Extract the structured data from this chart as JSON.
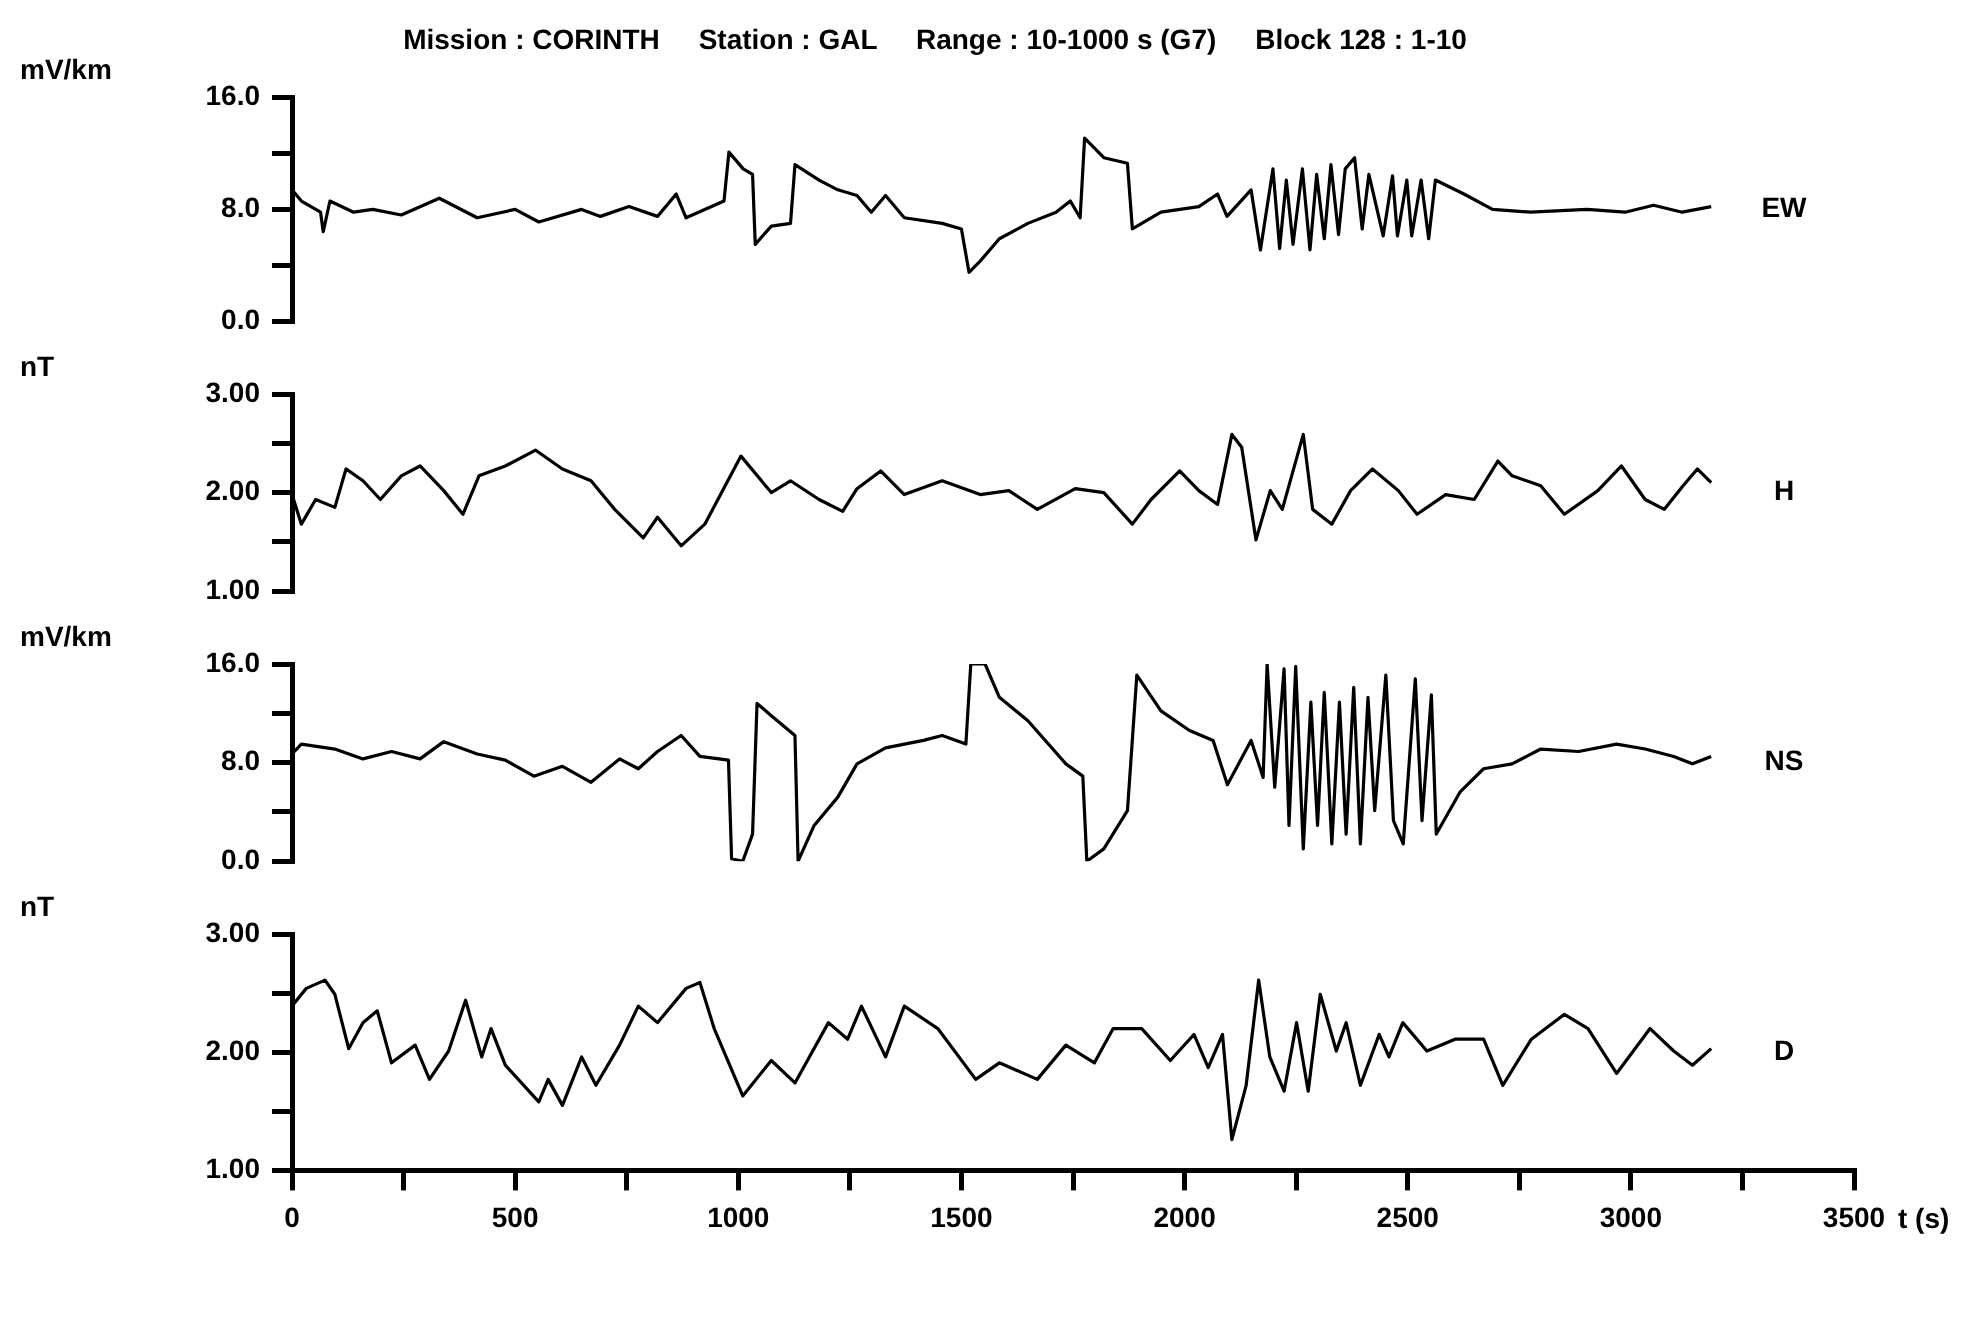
{
  "chart_data": [
    {
      "type": "line",
      "title": "Mission : CORINTH     Station : GAL     Range : 10-1000 s (G7)     Block 128 : 1-10",
      "ylabel": "mV/km",
      "xlim": [
        0,
        3500
      ],
      "ylim": [
        0,
        16
      ],
      "yticks": [
        {
          "value": 0,
          "label": "0.0"
        },
        {
          "value": 4,
          "label": null
        },
        {
          "value": 8,
          "label": "8.0"
        },
        {
          "value": 12,
          "label": null
        },
        {
          "value": 16,
          "label": "16.0"
        }
      ],
      "grid": false,
      "legend": false,
      "tick_labels": "y",
      "series": [
        {
          "name": "EW",
          "color": "#000000",
          "x": [
            0,
            21,
            64,
            70,
            85,
            138,
            181,
            245,
            330,
            415,
            500,
            553,
            649,
            691,
            755,
            819,
            861,
            883,
            968,
            979,
            1011,
            1032,
            1038,
            1074,
            1117,
            1127,
            1181,
            1223,
            1266,
            1298,
            1330,
            1372,
            1457,
            1500,
            1517,
            1542,
            1585,
            1649,
            1712,
            1744,
            1766,
            1776,
            1819,
            1872,
            1883,
            1947,
            2032,
            2074,
            2095,
            2149,
            2170,
            2198,
            2213,
            2228,
            2243,
            2264,
            2281,
            2296,
            2313,
            2328,
            2345,
            2360,
            2381,
            2398,
            2413,
            2445,
            2466,
            2477,
            2498,
            2509,
            2530,
            2547,
            2562,
            2626,
            2690,
            2775,
            2902,
            2987,
            3051,
            3115,
            3180
          ],
          "values": [
            9.4,
            8.6,
            7.8,
            6.4,
            8.6,
            7.8,
            8.0,
            7.6,
            8.8,
            7.4,
            8.0,
            7.1,
            8.0,
            7.5,
            8.2,
            7.5,
            9.1,
            7.4,
            8.6,
            12.1,
            10.9,
            10.5,
            5.5,
            6.8,
            7.0,
            11.2,
            10.1,
            9.4,
            9.0,
            7.8,
            9.0,
            7.4,
            7.0,
            6.6,
            3.5,
            4.3,
            5.9,
            7.0,
            7.8,
            8.6,
            7.4,
            13.1,
            11.7,
            11.3,
            6.6,
            7.8,
            8.2,
            9.1,
            7.5,
            9.4,
            5.1,
            10.9,
            5.2,
            10.1,
            5.5,
            10.9,
            5.1,
            10.5,
            5.9,
            11.2,
            6.2,
            10.9,
            11.7,
            6.6,
            10.5,
            6.1,
            10.4,
            6.1,
            10.1,
            6.1,
            10.1,
            5.9,
            10.1,
            9.1,
            8.0,
            7.8,
            8.0,
            7.8,
            8.3,
            7.8,
            8.2
          ]
        }
      ]
    },
    {
      "type": "line",
      "ylabel": "nT",
      "xlim": [
        0,
        3500
      ],
      "ylim": [
        1,
        3
      ],
      "yticks": [
        {
          "value": 1,
          "label": "1.00"
        },
        {
          "value": 1.5,
          "label": null
        },
        {
          "value": 2,
          "label": "2.00"
        },
        {
          "value": 2.5,
          "label": null
        },
        {
          "value": 3,
          "label": "3.00"
        }
      ],
      "grid": false,
      "legend": false,
      "tick_labels": "y",
      "series": [
        {
          "name": "H",
          "color": "#000000",
          "x": [
            0,
            21,
            53,
            96,
            121,
            159,
            198,
            245,
            287,
            340,
            383,
            419,
            478,
            546,
            606,
            670,
            723,
            787,
            819,
            872,
            925,
            1006,
            1074,
            1117,
            1181,
            1234,
            1266,
            1319,
            1372,
            1457,
            1542,
            1606,
            1670,
            1755,
            1819,
            1883,
            1925,
            1989,
            2032,
            2074,
            2106,
            2128,
            2160,
            2192,
            2219,
            2266,
            2287,
            2330,
            2372,
            2421,
            2479,
            2521,
            2585,
            2649,
            2702,
            2734,
            2798,
            2851,
            2926,
            2979,
            3032,
            3075,
            3117,
            3149,
            3180
          ],
          "values": [
            1.98,
            1.68,
            1.93,
            1.85,
            2.24,
            2.12,
            1.93,
            2.17,
            2.27,
            2.02,
            1.78,
            2.17,
            2.27,
            2.43,
            2.24,
            2.12,
            1.83,
            1.54,
            1.75,
            1.46,
            1.68,
            2.37,
            2.0,
            2.12,
            1.93,
            1.81,
            2.04,
            2.22,
            1.98,
            2.12,
            1.98,
            2.02,
            1.83,
            2.04,
            2.0,
            1.68,
            1.93,
            2.22,
            2.02,
            1.88,
            2.59,
            2.46,
            1.52,
            2.02,
            1.83,
            2.59,
            1.83,
            1.68,
            2.02,
            2.24,
            2.02,
            1.78,
            1.98,
            1.93,
            2.32,
            2.17,
            2.07,
            1.78,
            2.02,
            2.27,
            1.93,
            1.83,
            2.07,
            2.24,
            2.1
          ]
        }
      ]
    },
    {
      "type": "line",
      "ylabel": "mV/km",
      "xlim": [
        0,
        3500
      ],
      "ylim": [
        0,
        16
      ],
      "yticks": [
        {
          "value": 0,
          "label": "0.0"
        },
        {
          "value": 4,
          "label": null
        },
        {
          "value": 8,
          "label": "8.0"
        },
        {
          "value": 12,
          "label": null
        },
        {
          "value": 16,
          "label": "16.0"
        }
      ],
      "grid": false,
      "legend": false,
      "tick_labels": "y",
      "series": [
        {
          "name": "NS",
          "color": "#000000",
          "x": [
            0,
            21,
            96,
            159,
            223,
            287,
            340,
            415,
            478,
            542,
            606,
            670,
            734,
            776,
            819,
            872,
            914,
            978,
            985,
            1010,
            1032,
            1042,
            1074,
            1127,
            1134,
            1170,
            1223,
            1266,
            1330,
            1415,
            1457,
            1510,
            1521,
            1553,
            1585,
            1649,
            1734,
            1772,
            1781,
            1819,
            1872,
            1893,
            1947,
            2011,
            2064,
            2096,
            2149,
            2176,
            2185,
            2202,
            2223,
            2234,
            2249,
            2266,
            2283,
            2298,
            2313,
            2330,
            2347,
            2362,
            2379,
            2394,
            2411,
            2426,
            2451,
            2468,
            2490,
            2517,
            2532,
            2553,
            2564,
            2617,
            2670,
            2734,
            2798,
            2883,
            2968,
            3032,
            3096,
            3138,
            3180
          ],
          "values": [
            8.7,
            9.5,
            9.1,
            8.3,
            8.9,
            8.3,
            9.7,
            8.7,
            8.2,
            6.9,
            7.7,
            6.4,
            8.3,
            7.5,
            8.9,
            10.2,
            8.5,
            8.2,
            0.2,
            0.0,
            2.2,
            12.8,
            11.8,
            10.2,
            0.0,
            2.9,
            5.2,
            7.9,
            9.2,
            9.8,
            10.2,
            9.5,
            16.0,
            16.0,
            13.3,
            11.4,
            7.9,
            6.9,
            0.0,
            1.0,
            4.1,
            15.1,
            12.2,
            10.6,
            9.8,
            6.2,
            9.8,
            6.8,
            16.0,
            6.0,
            15.6,
            2.9,
            15.8,
            1.0,
            12.9,
            2.9,
            13.7,
            1.4,
            12.9,
            2.2,
            14.1,
            1.4,
            13.3,
            4.1,
            15.1,
            3.3,
            1.4,
            14.8,
            3.3,
            13.5,
            2.2,
            5.6,
            7.5,
            7.9,
            9.1,
            8.9,
            9.5,
            9.1,
            8.5,
            7.9,
            8.5
          ]
        }
      ]
    },
    {
      "type": "line",
      "ylabel": "nT",
      "xlabel": "t (s)",
      "xlim": [
        0,
        3500
      ],
      "xticks": [
        0,
        {
          "value": 250,
          "label": null
        },
        500,
        {
          "value": 750,
          "label": null
        },
        1000,
        {
          "value": 1250,
          "label": null
        },
        1500,
        {
          "value": 1750,
          "label": null
        },
        2000,
        {
          "value": 2250,
          "label": null
        },
        2500,
        {
          "value": 2750,
          "label": null
        },
        3000,
        {
          "value": 3250,
          "label": null
        },
        3500
      ],
      "ylim": [
        1,
        3
      ],
      "yticks": [
        {
          "value": 1,
          "label": "1.00"
        },
        {
          "value": 1.5,
          "label": null
        },
        {
          "value": 2,
          "label": "2.00"
        },
        {
          "value": 2.5,
          "label": null
        },
        {
          "value": 3,
          "label": "3.00"
        }
      ],
      "grid": false,
      "legend": false,
      "series": [
        {
          "name": "D",
          "color": "#000000",
          "x": [
            0,
            32,
            74,
            96,
            127,
            159,
            191,
            223,
            276,
            308,
            351,
            389,
            425,
            446,
            478,
            553,
            574,
            606,
            649,
            681,
            734,
            776,
            819,
            883,
            914,
            946,
            1010,
            1074,
            1127,
            1202,
            1245,
            1276,
            1330,
            1372,
            1447,
            1532,
            1585,
            1670,
            1734,
            1798,
            1840,
            1904,
            1968,
            2021,
            2053,
            2085,
            2106,
            2138,
            2166,
            2191,
            2223,
            2251,
            2277,
            2304,
            2340,
            2362,
            2394,
            2436,
            2458,
            2489,
            2543,
            2606,
            2670,
            2713,
            2777,
            2851,
            2904,
            2968,
            3043,
            3096,
            3138,
            3180
          ],
          "values": [
            2.39,
            2.54,
            2.61,
            2.49,
            2.03,
            2.25,
            2.35,
            1.91,
            2.06,
            1.77,
            2.01,
            2.44,
            1.96,
            2.2,
            1.89,
            1.58,
            1.77,
            1.55,
            1.96,
            1.72,
            2.06,
            2.39,
            2.25,
            2.54,
            2.59,
            2.2,
            1.63,
            1.93,
            1.74,
            2.25,
            2.11,
            2.39,
            1.96,
            2.39,
            2.2,
            1.77,
            1.91,
            1.77,
            2.06,
            1.91,
            2.2,
            2.2,
            1.93,
            2.15,
            1.87,
            2.15,
            1.26,
            1.72,
            2.61,
            1.96,
            1.67,
            2.25,
            1.67,
            2.49,
            2.01,
            2.25,
            1.72,
            2.15,
            1.96,
            2.25,
            2.01,
            2.11,
            2.11,
            1.72,
            2.11,
            2.32,
            2.2,
            1.82,
            2.2,
            2.01,
            1.89,
            2.03
          ]
        }
      ]
    }
  ]
}
